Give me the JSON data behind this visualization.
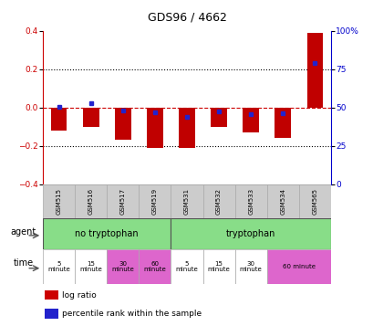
{
  "title": "GDS96 / 4662",
  "samples": [
    "GSM515",
    "GSM516",
    "GSM517",
    "GSM519",
    "GSM531",
    "GSM532",
    "GSM533",
    "GSM534",
    "GSM565"
  ],
  "log_ratio": [
    -0.12,
    -0.1,
    -0.17,
    -0.21,
    -0.21,
    -0.1,
    -0.13,
    -0.16,
    0.39
  ],
  "percentile_rank": [
    50.5,
    53.0,
    48.0,
    47.0,
    44.0,
    47.5,
    46.0,
    46.5,
    79.0
  ],
  "ylim_left": [
    -0.4,
    0.4
  ],
  "ylim_right": [
    0,
    100
  ],
  "yticks_left": [
    -0.4,
    -0.2,
    0.0,
    0.2,
    0.4
  ],
  "yticks_right": [
    0,
    25,
    50,
    75,
    100
  ],
  "bar_color": "#c00000",
  "dot_color": "#2222cc",
  "hline_color": "#cc0000",
  "gridline_color": "#000000",
  "bg_color": "#ffffff",
  "gsm_bg": "#cccccc",
  "agent_green": "#88dd88",
  "time_white": "#ffffff",
  "time_magenta": "#dd66cc",
  "legend_bar_color": "#cc0000",
  "legend_dot_color": "#2222cc",
  "legend_labels": [
    "log ratio",
    "percentile rank within the sample"
  ]
}
